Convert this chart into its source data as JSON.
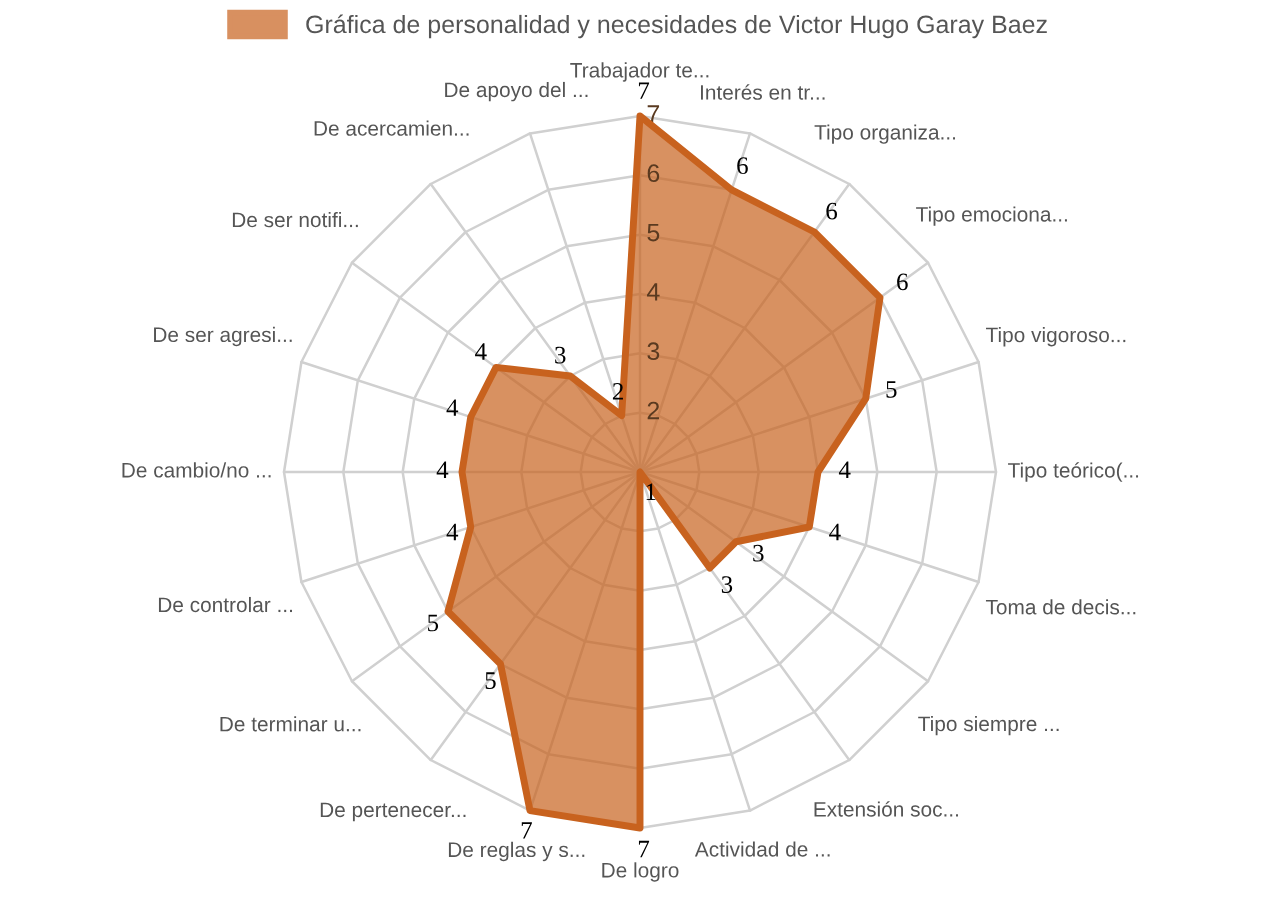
{
  "chart_data": {
    "type": "radar",
    "categories": [
      "Trabajador te...",
      "Interés en tr...",
      "Tipo organiza...",
      "Tipo emociona...",
      "Tipo vigoroso...",
      "Tipo teórico(...",
      "Toma de decis...",
      "Tipo siempre ...",
      "Extensión soc...",
      "Actividad de ...",
      "De logro",
      "De reglas y s...",
      "De pertenecer...",
      "De terminar u...",
      "De controlar ...",
      "De cambio/no ...",
      "De ser agresi...",
      "De ser notifi...",
      "De acercamien...",
      "De apoyo del ..."
    ],
    "series": [
      {
        "name": "Gráfica de personalidad y necesidades de Victor Hugo Garay Baez",
        "color": "#c8621e",
        "values": [
          7,
          6,
          6,
          6,
          5,
          4,
          4,
          3,
          3,
          1,
          7,
          7,
          5,
          5,
          4,
          4,
          4,
          4,
          3,
          2
        ]
      }
    ],
    "ylim": [
      1,
      7
    ],
    "yticks": [
      2,
      3,
      4,
      5,
      6,
      7
    ],
    "data_labels": true,
    "legend": "top",
    "grid": true
  }
}
